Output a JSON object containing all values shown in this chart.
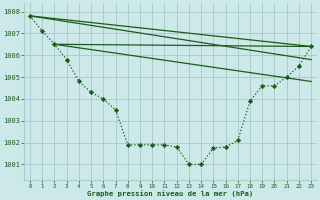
{
  "title": "Graphe pression niveau de la mer (hPa)",
  "background_color": "#cce8e8",
  "grid_color": "#aacccc",
  "line_color": "#1a5c1a",
  "ylim": [
    1000.3,
    1008.4
  ],
  "xlim": [
    -0.5,
    23.5
  ],
  "yticks": [
    1001,
    1002,
    1003,
    1004,
    1005,
    1006,
    1007,
    1008
  ],
  "xticks": [
    0,
    1,
    2,
    3,
    4,
    5,
    6,
    7,
    8,
    9,
    10,
    11,
    12,
    13,
    14,
    15,
    16,
    17,
    18,
    19,
    20,
    21,
    22,
    23
  ],
  "main_x": [
    0,
    1,
    2,
    3,
    4,
    5,
    6,
    7,
    8,
    9,
    10,
    11,
    12,
    13,
    14,
    15,
    16,
    17,
    18,
    19,
    20,
    21,
    22,
    23
  ],
  "main_y": [
    1007.8,
    1007.1,
    1006.5,
    1005.8,
    1004.8,
    1004.3,
    1004.0,
    1003.5,
    1001.9,
    1001.9,
    1001.9,
    1001.9,
    1001.8,
    1001.0,
    1001.0,
    1001.75,
    1001.8,
    1002.1,
    1003.9,
    1004.6,
    1004.6,
    1005.0,
    1005.5,
    1006.4
  ],
  "ref_lines": [
    {
      "x": [
        0,
        23
      ],
      "y": [
        1007.8,
        1006.4
      ]
    },
    {
      "x": [
        0,
        23
      ],
      "y": [
        1007.8,
        1005.8
      ]
    },
    {
      "x": [
        2,
        23
      ],
      "y": [
        1006.5,
        1006.4
      ]
    },
    {
      "x": [
        2,
        23
      ],
      "y": [
        1006.5,
        1004.8
      ]
    }
  ]
}
